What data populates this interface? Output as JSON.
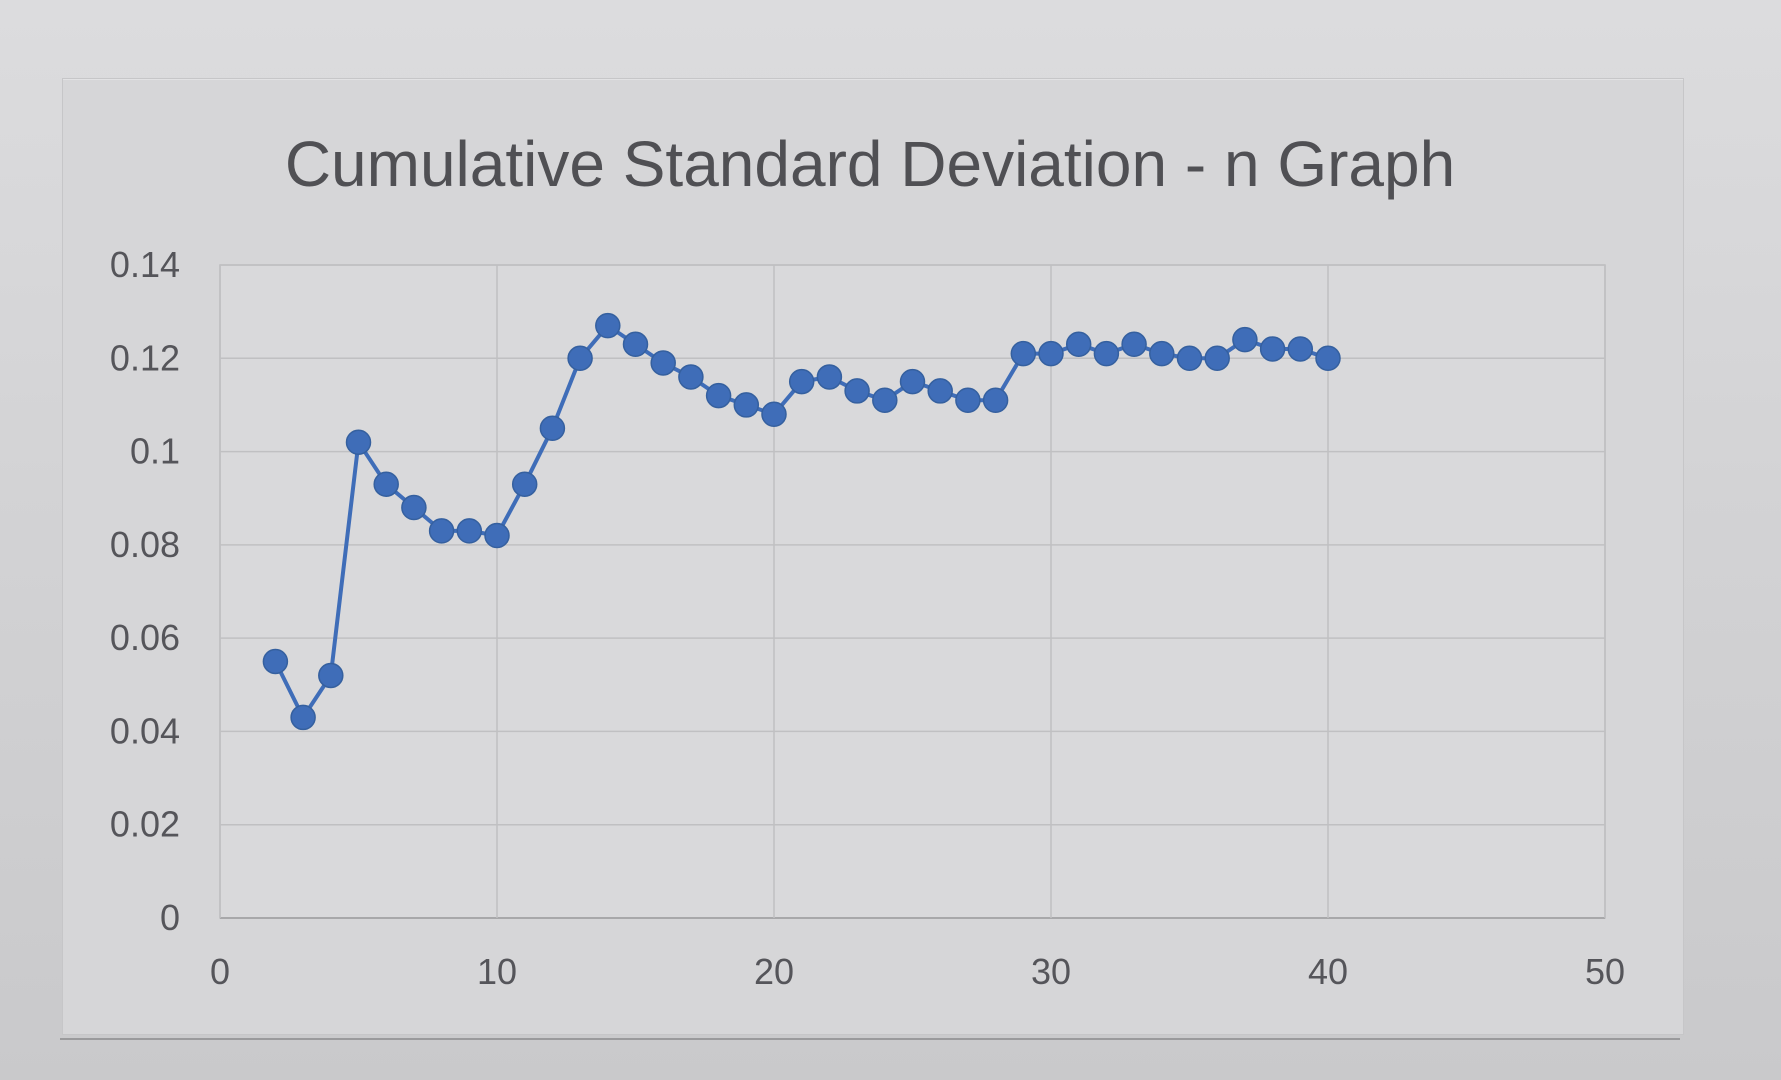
{
  "chart_data": {
    "type": "scatter",
    "title": "Cumulative Standard Deviation - n Graph",
    "xlabel": "",
    "ylabel": "",
    "xlim": [
      0,
      50
    ],
    "ylim": [
      0,
      0.14
    ],
    "xticks": [
      "0",
      "10",
      "20",
      "30",
      "40",
      "50"
    ],
    "yticks": [
      "0",
      "0.02",
      "0.04",
      "0.06",
      "0.08",
      "0.1",
      "0.12",
      "0.14"
    ],
    "grid": true,
    "legend": "none",
    "line_color": "#3f6db8",
    "series": [
      {
        "x": [
          2,
          3,
          4,
          5,
          6,
          7,
          8,
          9,
          10,
          11,
          12,
          13,
          14,
          15,
          16,
          17,
          18,
          19,
          20,
          21,
          22,
          23,
          24,
          25,
          26,
          27,
          28,
          29,
          30,
          31,
          32,
          33,
          34,
          35,
          36,
          37,
          38,
          39,
          40
        ],
        "y": [
          0.055,
          0.043,
          0.052,
          0.102,
          0.093,
          0.088,
          0.083,
          0.083,
          0.082,
          0.093,
          0.105,
          0.12,
          0.127,
          0.123,
          0.119,
          0.116,
          0.112,
          0.11,
          0.108,
          0.115,
          0.116,
          0.113,
          0.111,
          0.115,
          0.113,
          0.111,
          0.111,
          0.121,
          0.121,
          0.123,
          0.121,
          0.123,
          0.121,
          0.12,
          0.12,
          0.124,
          0.122,
          0.122,
          0.12
        ]
      }
    ]
  }
}
